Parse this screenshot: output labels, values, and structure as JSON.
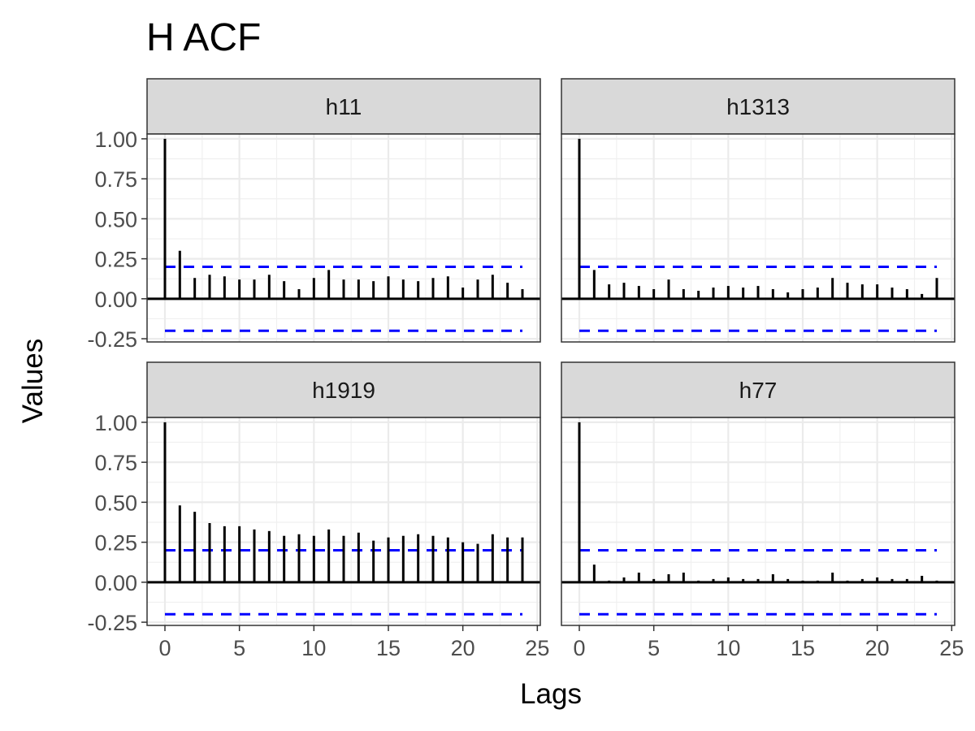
{
  "chart_data": {
    "type": "bar",
    "title": "H ACF",
    "xlabel": "Lags",
    "ylabel": "Values",
    "xlim": [
      -1.2,
      25.2
    ],
    "ylim": [
      -0.27,
      1.03
    ],
    "x_ticks": [
      0,
      5,
      10,
      15,
      20,
      25
    ],
    "y_ticks": [
      -0.25,
      0.0,
      0.25,
      0.5,
      0.75,
      1.0
    ],
    "y_tick_labels": [
      "-0.25",
      "0.00",
      "0.25",
      "0.50",
      "0.75",
      "1.00"
    ],
    "x_tick_labels": [
      "0",
      "5",
      "10",
      "15",
      "20",
      "25"
    ],
    "confidence_bound": 0.2,
    "confidence_color": "#0000ff",
    "bar_color": "#000000",
    "grid": true,
    "lags": [
      0,
      1,
      2,
      3,
      4,
      5,
      6,
      7,
      8,
      9,
      10,
      11,
      12,
      13,
      14,
      15,
      16,
      17,
      18,
      19,
      20,
      21,
      22,
      23,
      24
    ],
    "panels": [
      {
        "name": "h11",
        "values": [
          1.0,
          0.3,
          0.13,
          0.15,
          0.14,
          0.12,
          0.12,
          0.15,
          0.11,
          0.06,
          0.13,
          0.18,
          0.12,
          0.12,
          0.11,
          0.14,
          0.12,
          0.11,
          0.13,
          0.14,
          0.07,
          0.12,
          0.15,
          0.1,
          0.06
        ]
      },
      {
        "name": "h1313",
        "values": [
          1.0,
          0.18,
          0.09,
          0.1,
          0.08,
          0.06,
          0.12,
          0.06,
          0.05,
          0.07,
          0.08,
          0.07,
          0.08,
          0.06,
          0.04,
          0.06,
          0.07,
          0.13,
          0.1,
          0.09,
          0.09,
          0.07,
          0.06,
          0.03,
          0.13
        ]
      },
      {
        "name": "h1919",
        "values": [
          1.0,
          0.48,
          0.44,
          0.37,
          0.35,
          0.35,
          0.33,
          0.32,
          0.29,
          0.3,
          0.29,
          0.33,
          0.29,
          0.31,
          0.26,
          0.28,
          0.29,
          0.3,
          0.29,
          0.28,
          0.25,
          0.24,
          0.3,
          0.28,
          0.28
        ]
      },
      {
        "name": "h77",
        "values": [
          1.0,
          0.11,
          0.01,
          0.03,
          0.06,
          0.02,
          0.05,
          0.06,
          0.01,
          0.02,
          0.03,
          0.02,
          0.02,
          0.05,
          0.02,
          0.01,
          0.01,
          0.06,
          0.01,
          0.02,
          0.03,
          0.02,
          0.02,
          0.04,
          0.01
        ]
      }
    ]
  }
}
